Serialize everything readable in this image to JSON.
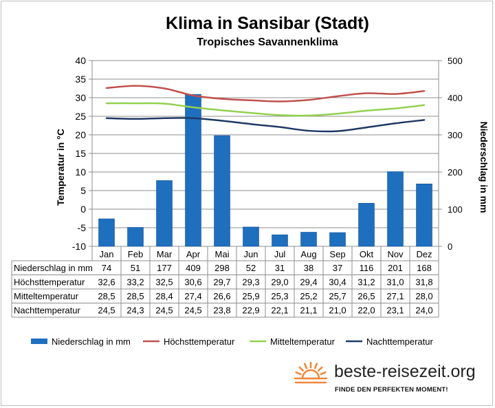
{
  "chart_data": {
    "type": "bar",
    "title": "Klima in Sansibar (Stadt)",
    "subtitle": "Tropisches Savannenklima",
    "ylabel": "Temperatur in °C",
    "y2label": "Niederschlag in mm",
    "ylim": [
      -10,
      40
    ],
    "y2lim": [
      0,
      500
    ],
    "yticks": [
      -10,
      -5,
      0,
      5,
      10,
      15,
      20,
      25,
      30,
      35,
      40
    ],
    "y2ticks": [
      0,
      100,
      200,
      300,
      400,
      500
    ],
    "grid": true,
    "legend_position": "bottom",
    "categories": [
      "Jan",
      "Feb",
      "Mar",
      "Apr",
      "Mai",
      "Jun",
      "Jul",
      "Aug",
      "Sep",
      "Okt",
      "Nov",
      "Dez"
    ],
    "series": [
      {
        "name": "Niederschlag in mm",
        "type": "bar",
        "axis": "right",
        "color": "#1f6fbf",
        "values": [
          74,
          51,
          177,
          409,
          298,
          52,
          31,
          38,
          37,
          116,
          201,
          168
        ],
        "display": [
          "74",
          "51",
          "177",
          "409",
          "298",
          "52",
          "31",
          "38",
          "37",
          "116",
          "201",
          "168"
        ]
      },
      {
        "name": "Höchsttemperatur",
        "type": "line",
        "axis": "left",
        "color": "#c0504d",
        "values": [
          32.6,
          33.2,
          32.5,
          30.6,
          29.7,
          29.3,
          29.0,
          29.4,
          30.4,
          31.2,
          31.0,
          31.8
        ],
        "display": [
          "32,6",
          "33,2",
          "32,5",
          "30,6",
          "29,7",
          "29,3",
          "29,0",
          "29,4",
          "30,4",
          "31,2",
          "31,0",
          "31,8"
        ]
      },
      {
        "name": "Mitteltemperatur",
        "type": "line",
        "axis": "left",
        "color": "#92d050",
        "values": [
          28.5,
          28.5,
          28.4,
          27.4,
          26.6,
          25.9,
          25.3,
          25.2,
          25.7,
          26.5,
          27.1,
          28.0
        ],
        "display": [
          "28,5",
          "28,5",
          "28,4",
          "27,4",
          "26,6",
          "25,9",
          "25,3",
          "25,2",
          "25,7",
          "26,5",
          "27,1",
          "28,0"
        ]
      },
      {
        "name": "Nachttemperatur",
        "type": "line",
        "axis": "left",
        "color": "#1f3864",
        "values": [
          24.5,
          24.3,
          24.5,
          24.5,
          23.8,
          22.9,
          22.1,
          21.1,
          21.0,
          22.0,
          23.1,
          24.0
        ],
        "display": [
          "24,5",
          "24,3",
          "24,5",
          "24,5",
          "23,8",
          "22,9",
          "22,1",
          "21,1",
          "21,0",
          "22,0",
          "23,1",
          "24,0"
        ]
      }
    ]
  },
  "table": {
    "row_labels": [
      "Niederschlag in mm",
      "Höchsttemperatur",
      "Mitteltemperatur",
      "Nachttemperatur"
    ]
  },
  "brand": {
    "name": "beste-reisezeit.org",
    "tagline": "FINDE DEN PERFEKTEN MOMENT!",
    "accent": "#f0883a"
  }
}
